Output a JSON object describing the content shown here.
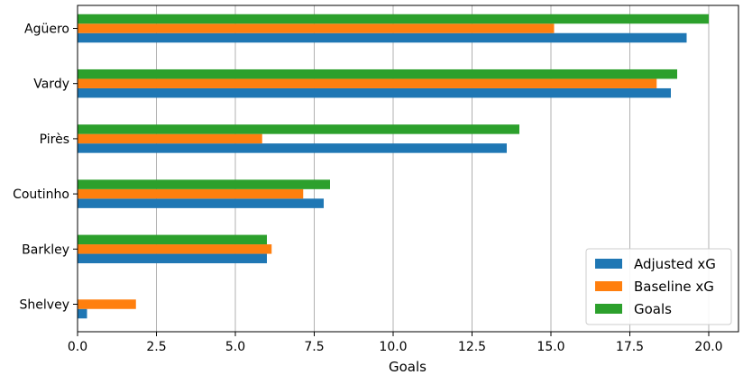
{
  "chart_data": {
    "type": "bar",
    "orientation": "horizontal",
    "title": "",
    "xlabel": "Goals",
    "ylabel": "",
    "xlim": [
      0,
      20.9
    ],
    "x_ticks": [
      "0.0",
      "2.5",
      "5.0",
      "7.5",
      "10.0",
      "12.5",
      "15.0",
      "17.5",
      "20.0"
    ],
    "x_tick_values": [
      0,
      2.5,
      5,
      7.5,
      10,
      12.5,
      15,
      17.5,
      20
    ],
    "grid": "vertical",
    "legend_position": "lower-right",
    "categories": [
      "Agüero",
      "Vardy",
      "Pirès",
      "Coutinho",
      "Barkley",
      "Shelvey"
    ],
    "series": [
      {
        "name": "Adjusted xG",
        "color": "#1f77b4",
        "values": [
          19.3,
          18.8,
          13.6,
          7.8,
          6.0,
          0.3
        ]
      },
      {
        "name": "Baseline xG",
        "color": "#ff7f0e",
        "values": [
          15.1,
          18.35,
          5.85,
          7.15,
          6.15,
          1.85
        ]
      },
      {
        "name": "Goals",
        "color": "#2ca02c",
        "values": [
          20,
          19,
          14,
          8,
          6,
          0
        ]
      }
    ]
  }
}
